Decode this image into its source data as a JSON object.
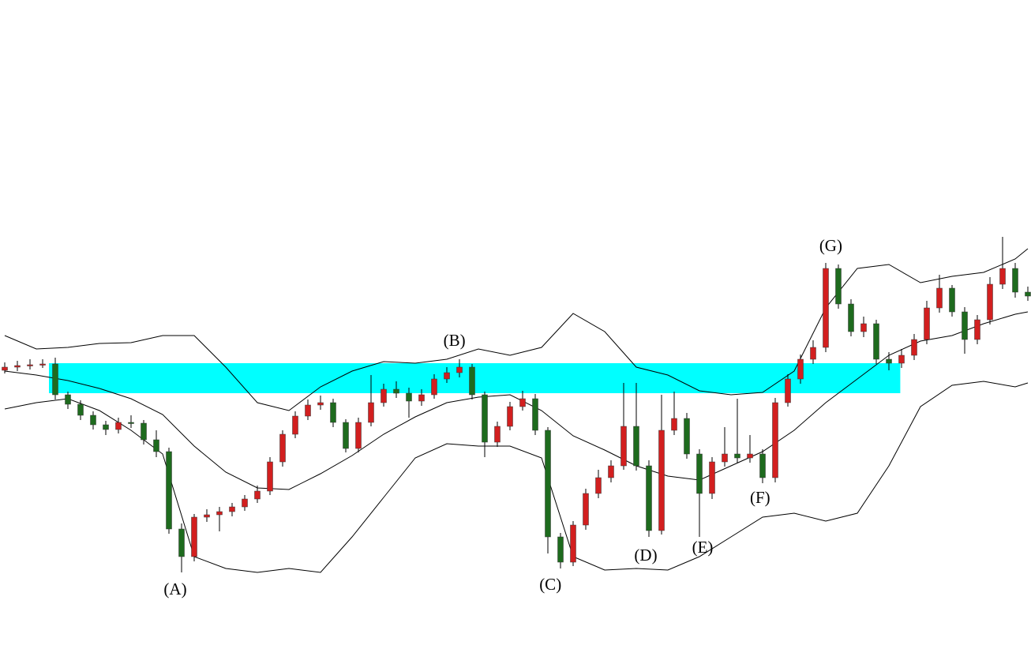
{
  "chart_data": {
    "type": "candlestick",
    "xlim": [
      -0.375,
      81.25
    ],
    "ylim": [
      0,
      841
    ],
    "up_color": "#d21f1f",
    "down_color": "#1e6b1e",
    "wick_color": "#000000",
    "band_color": "#000000",
    "open": [
      372,
      376,
      378,
      379,
      380,
      341,
      329,
      315,
      303,
      297,
      306,
      305,
      284,
      269,
      171,
      136,
      186,
      189,
      193,
      199,
      209,
      219,
      256,
      291,
      314,
      328,
      331,
      306,
      273,
      306,
      331,
      348,
      343,
      333,
      341,
      361,
      369,
      376,
      341,
      281,
      301,
      326,
      336,
      296,
      161,
      129,
      176,
      216,
      236,
      251,
      301,
      251,
      169,
      296,
      311,
      266,
      216,
      256,
      266,
      261,
      266,
      236,
      331,
      361,
      386,
      401,
      501,
      456,
      421,
      431,
      386,
      381,
      391,
      411,
      451,
      476,
      446,
      411,
      436,
      481,
      501,
      471
    ],
    "high": [
      382,
      384,
      386,
      386,
      388,
      345,
      334,
      320,
      308,
      312,
      315,
      309,
      296,
      274,
      178,
      190,
      196,
      199,
      204,
      214,
      226,
      262,
      296,
      320,
      335,
      340,
      336,
      310,
      312,
      366,
      355,
      358,
      350,
      348,
      367,
      376,
      386,
      380,
      345,
      307,
      332,
      346,
      342,
      300,
      166,
      181,
      222,
      246,
      258,
      356,
      356,
      258,
      341,
      345,
      318,
      272,
      262,
      300,
      336,
      290,
      272,
      337,
      367,
      392,
      410,
      508,
      506,
      462,
      440,
      436,
      395,
      399,
      418,
      460,
      493,
      480,
      452,
      442,
      490,
      541,
      508,
      478
    ],
    "low": [
      368,
      371,
      373,
      375,
      335,
      323,
      309,
      297,
      290,
      292,
      299,
      278,
      262,
      165,
      116,
      130,
      180,
      168,
      187,
      194,
      204,
      214,
      250,
      286,
      309,
      322,
      300,
      268,
      268,
      301,
      326,
      337,
      312,
      327,
      336,
      356,
      363,
      335,
      262,
      275,
      296,
      321,
      290,
      140,
      121,
      124,
      170,
      210,
      230,
      246,
      245,
      161,
      164,
      290,
      260,
      161,
      209,
      250,
      255,
      255,
      229,
      230,
      326,
      355,
      380,
      395,
      450,
      415,
      414,
      380,
      372,
      375,
      385,
      405,
      445,
      440,
      393,
      405,
      430,
      475,
      464,
      460
    ],
    "close": [
      376,
      378,
      379,
      380,
      341,
      329,
      315,
      303,
      297,
      306,
      305,
      284,
      269,
      171,
      136,
      186,
      189,
      193,
      199,
      209,
      219,
      256,
      291,
      314,
      328,
      331,
      306,
      273,
      306,
      331,
      348,
      343,
      333,
      341,
      361,
      369,
      376,
      341,
      281,
      301,
      326,
      336,
      296,
      161,
      129,
      176,
      216,
      236,
      251,
      301,
      251,
      169,
      296,
      311,
      266,
      216,
      256,
      266,
      261,
      266,
      236,
      331,
      361,
      386,
      401,
      501,
      456,
      421,
      431,
      386,
      381,
      391,
      411,
      451,
      476,
      446,
      411,
      436,
      481,
      501,
      471,
      466
    ],
    "band_x": [
      0,
      2.5,
      5,
      7.5,
      10,
      12.5,
      15,
      17.5,
      20,
      22.5,
      25,
      27.5,
      30,
      32.5,
      35,
      37.5,
      40,
      42.5,
      45,
      47.5,
      50,
      52.5,
      55,
      57.5,
      60,
      62.5,
      65,
      67.5,
      70,
      72.5,
      75,
      77.5,
      80,
      81
    ],
    "bands": [
      {
        "values": [
          416,
          399,
          401,
          406,
          407,
          416,
          416,
          376,
          331,
          321,
          351,
          371,
          383,
          381,
          386,
          399,
          391,
          401,
          444,
          421,
          376,
          366,
          346,
          341,
          344,
          371,
          451,
          501,
          506,
          483,
          491,
          496,
          513,
          526
        ]
      },
      {
        "values": [
          371,
          366,
          359,
          349,
          336,
          316,
          276,
          243,
          223,
          221,
          241,
          264,
          291,
          313,
          331,
          338,
          341,
          321,
          289,
          271,
          251,
          238,
          233,
          251,
          269,
          296,
          331,
          361,
          391,
          409,
          416,
          431,
          443,
          446
        ]
      },
      {
        "values": [
          323,
          331,
          336,
          321,
          296,
          266,
          136,
          121,
          116,
          121,
          116,
          161,
          211,
          261,
          279,
          276,
          276,
          261,
          136,
          119,
          121,
          119,
          136,
          161,
          186,
          191,
          181,
          191,
          251,
          326,
          353,
          358,
          351,
          356
        ]
      }
    ],
    "zone": {
      "from": 343,
      "to": 381,
      "x_from": 3.5,
      "x_to": 70.9,
      "color": "#00ffff"
    },
    "annotations": [
      {
        "text": "(A)",
        "x": 13.5,
        "y": 93
      },
      {
        "text": "(B)",
        "x": 35.6,
        "y": 408
      },
      {
        "text": "(C)",
        "x": 43.2,
        "y": 99
      },
      {
        "text": "(D)",
        "x": 50.75,
        "y": 136
      },
      {
        "text": "(E)",
        "x": 55.25,
        "y": 146
      },
      {
        "text": "(F)",
        "x": 59.8,
        "y": 209
      },
      {
        "text": "(G)",
        "x": 65.4,
        "y": 528
      }
    ]
  }
}
